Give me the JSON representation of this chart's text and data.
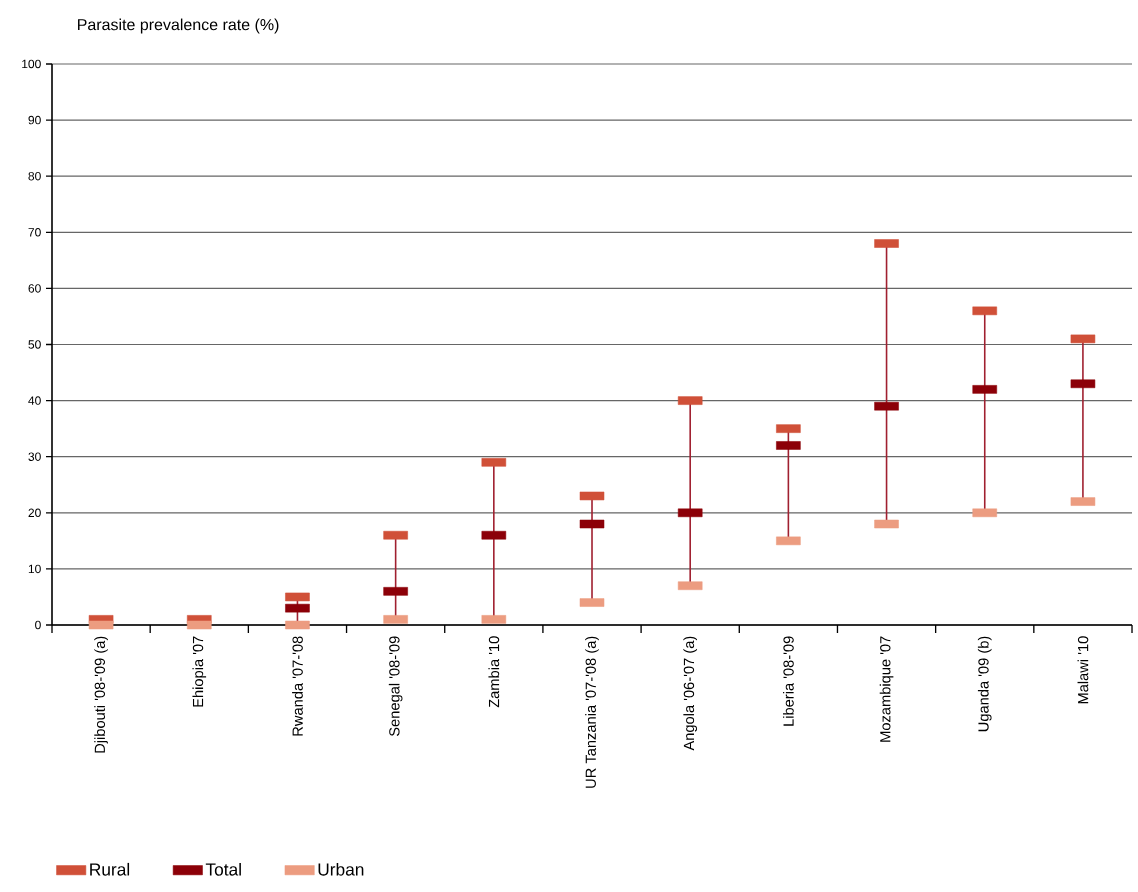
{
  "chart_data": {
    "type": "scatter",
    "ylabel": "Parasite prevalence rate (%)",
    "categories": [
      "Djibouti '08-'09 (a)",
      "Ehiopia '07",
      "Rwanda '07-'08",
      "Senegal '08-'09",
      "Zambia '10",
      "UR Tanzania '07-'08 (a)",
      "Angola '06-'07 (a)",
      "Liberia '08-'09",
      "Mozambique '07",
      "Uganda '09 (b)",
      "Malawi '10"
    ],
    "series": [
      {
        "name": "Rural",
        "color": "#d05038",
        "values": [
          1,
          1,
          5,
          16,
          29,
          23,
          40,
          35,
          68,
          56,
          51
        ]
      },
      {
        "name": "Total",
        "color": "#8c0008",
        "values": [
          null,
          null,
          3,
          6,
          16,
          18,
          20,
          32,
          39,
          42,
          43
        ]
      },
      {
        "name": "Urban",
        "color": "#ec9c80",
        "values": [
          0,
          0,
          0,
          1,
          1,
          4,
          7,
          15,
          18,
          20,
          22
        ]
      }
    ],
    "ylim": [
      0,
      100
    ],
    "yticks": [
      0,
      10,
      20,
      30,
      40,
      50,
      60,
      70,
      80,
      90,
      100
    ],
    "grid": "y",
    "legend": "bottom left",
    "marker": "square"
  }
}
